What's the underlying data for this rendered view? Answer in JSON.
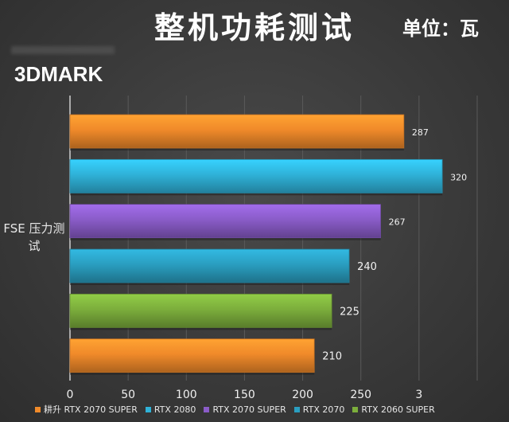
{
  "header": {
    "title": "整机功耗测试",
    "unit": "单位：瓦",
    "brand": "3DMARK"
  },
  "chart_data": {
    "type": "bar",
    "orientation": "horizontal",
    "category_label": "FSE 压力测试",
    "categories": [
      "FSE 压力测试"
    ],
    "series": [
      {
        "name": "耕升 RTX 2070 SUPER",
        "values": [
          287
        ],
        "color": "#f08a2a"
      },
      {
        "name": "RTX 2080",
        "values": [
          320
        ],
        "color": "#2fb2d8"
      },
      {
        "name": "RTX 2070 SUPER",
        "values": [
          267
        ],
        "color": "#8a5cc8"
      },
      {
        "name": "RTX 2070",
        "values": [
          240
        ],
        "color": "#2a9ec0"
      },
      {
        "name": "RTX 2060 SUPER",
        "values": [
          225
        ],
        "color": "#7cae3c"
      },
      {
        "name": "",
        "values": [
          210
        ],
        "color": "#f08a2a"
      }
    ],
    "xlim": [
      0,
      350
    ],
    "x_ticks": [
      "0",
      "50",
      "100",
      "150",
      "200",
      "250",
      "3"
    ],
    "grid": true,
    "legend_position": "bottom"
  }
}
